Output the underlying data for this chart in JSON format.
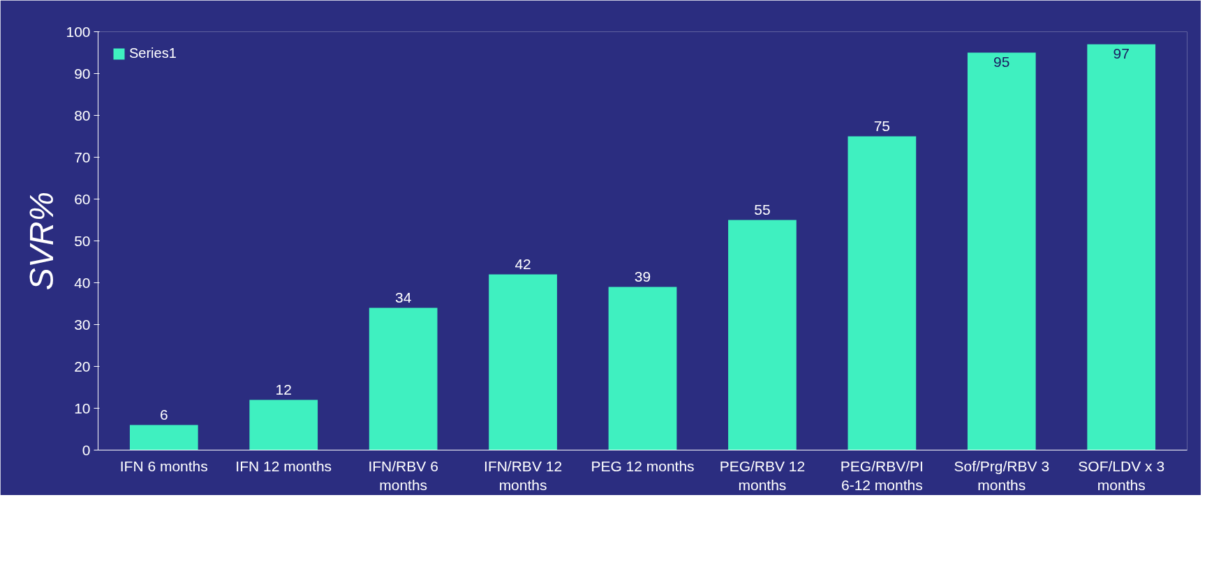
{
  "chart_data": {
    "type": "bar",
    "ylabel": "SVR%",
    "categories": [
      "IFN 6 months",
      "IFN 12 months",
      "IFN/RBV 6 months",
      "IFN/RBV 12 months",
      "PEG 12 months",
      "PEG/RBV 12 months",
      "PEG/RBV/PI 6-12 months",
      "Sof/Prg/RBV 3 months",
      "SOF/LDV x 3 months"
    ],
    "series": [
      {
        "name": "Series1",
        "color": "#3ff0c0",
        "values": [
          6,
          12,
          34,
          42,
          39,
          55,
          75,
          95,
          97
        ]
      }
    ],
    "ylim": [
      0,
      100
    ],
    "yticks": [
      0,
      10,
      20,
      30,
      40,
      50,
      60,
      70,
      80,
      90,
      100
    ],
    "data_labels": true,
    "grid": false,
    "legend": "top left"
  }
}
